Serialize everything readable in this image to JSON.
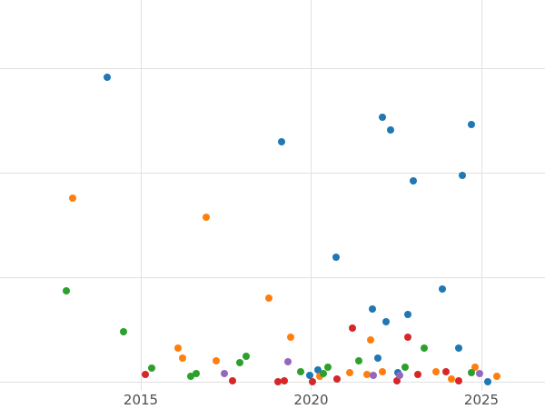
{
  "chart_data": {
    "type": "scatter",
    "title": "",
    "xlabel": "",
    "ylabel": "",
    "grid": true,
    "legend": "none",
    "x_axis": {
      "min_year": 2010.9,
      "max_year": 2025.9,
      "tick_years": [
        2015,
        2020,
        2025
      ]
    },
    "x_ticks": [
      {
        "label": "2015",
        "year": 2015
      },
      {
        "label": "2020",
        "year": 2020
      },
      {
        "label": "2025",
        "year": 2025
      }
    ],
    "y_axis": {
      "min": -0.09,
      "max": 3.65,
      "gridline_values": [
        0,
        1,
        2,
        3
      ],
      "tick_labels_visible": false
    },
    "series": [
      {
        "name": "series-blue",
        "color": "#1f77b4",
        "points": [
          [
            2014.01,
            2.91
          ],
          [
            2019.13,
            2.3
          ],
          [
            2022.09,
            2.53
          ],
          [
            2022.33,
            2.41
          ],
          [
            2024.71,
            2.46
          ],
          [
            2023.0,
            1.92
          ],
          [
            2024.44,
            1.97
          ],
          [
            2020.73,
            1.19
          ],
          [
            2023.85,
            0.89
          ],
          [
            2021.8,
            0.7
          ],
          [
            2022.2,
            0.57
          ],
          [
            2022.84,
            0.64
          ],
          [
            2021.96,
            0.23
          ],
          [
            2022.55,
            0.09
          ],
          [
            2024.33,
            0.32
          ],
          [
            2020.2,
            0.11
          ],
          [
            2019.96,
            0.06
          ],
          [
            2025.19,
            0.0
          ]
        ]
      },
      {
        "name": "series-orange",
        "color": "#ff7f0e",
        "points": [
          [
            2013.0,
            1.76
          ],
          [
            2016.92,
            1.57
          ],
          [
            2018.76,
            0.8
          ],
          [
            2016.09,
            0.32
          ],
          [
            2016.23,
            0.23
          ],
          [
            2017.21,
            0.2
          ],
          [
            2019.4,
            0.43
          ],
          [
            2021.75,
            0.4
          ],
          [
            2021.13,
            0.09
          ],
          [
            2021.64,
            0.07
          ],
          [
            2022.09,
            0.1
          ],
          [
            2023.67,
            0.1
          ],
          [
            2024.12,
            0.03
          ],
          [
            2024.81,
            0.14
          ],
          [
            2025.45,
            0.05
          ],
          [
            2020.25,
            0.05
          ]
        ]
      },
      {
        "name": "series-green",
        "color": "#2ca02c",
        "points": [
          [
            2012.81,
            0.87
          ],
          [
            2014.49,
            0.48
          ],
          [
            2015.32,
            0.13
          ],
          [
            2016.47,
            0.05
          ],
          [
            2016.63,
            0.08
          ],
          [
            2018.09,
            0.24
          ],
          [
            2017.91,
            0.18
          ],
          [
            2020.36,
            0.08
          ],
          [
            2020.49,
            0.14
          ],
          [
            2021.4,
            0.2
          ],
          [
            2023.32,
            0.32
          ],
          [
            2022.76,
            0.14
          ],
          [
            2024.71,
            0.09
          ],
          [
            2019.69,
            0.1
          ]
        ]
      },
      {
        "name": "series-red",
        "color": "#d62728",
        "points": [
          [
            2015.13,
            0.07
          ],
          [
            2017.69,
            0.01
          ],
          [
            2019.03,
            0.0
          ],
          [
            2019.21,
            0.01
          ],
          [
            2020.05,
            0.0
          ],
          [
            2021.21,
            0.51
          ],
          [
            2022.84,
            0.43
          ],
          [
            2022.52,
            0.01
          ],
          [
            2023.13,
            0.07
          ],
          [
            2023.96,
            0.1
          ],
          [
            2024.33,
            0.01
          ],
          [
            2020.76,
            0.03
          ]
        ]
      },
      {
        "name": "series-purple",
        "color": "#9467bd",
        "points": [
          [
            2017.45,
            0.08
          ],
          [
            2019.32,
            0.19
          ],
          [
            2021.83,
            0.06
          ],
          [
            2024.95,
            0.08
          ],
          [
            2022.6,
            0.06
          ]
        ]
      }
    ]
  },
  "style": {
    "gridline_color": "#e0e0e0",
    "tick_label_color": "#4d4d4d",
    "background_color": "#ffffff"
  }
}
